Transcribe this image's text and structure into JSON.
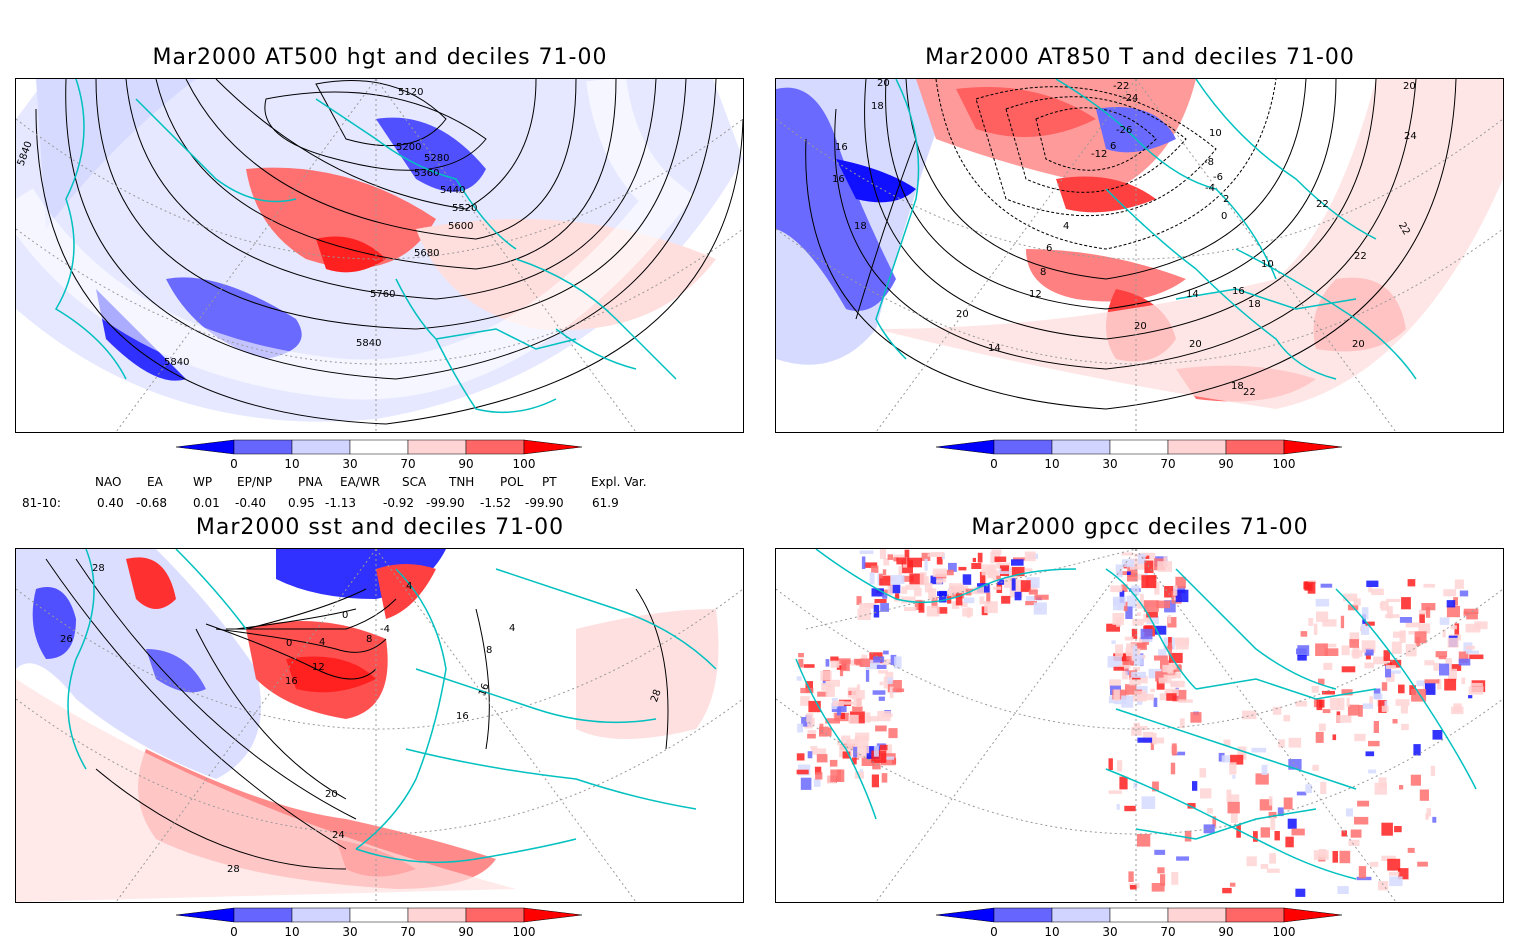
{
  "panels": [
    {
      "title": "Mar2000  AT500 hgt and deciles 71-00",
      "contour_labels": [
        "5120",
        "5200",
        "5280",
        "5360",
        "5440",
        "5520",
        "5600",
        "5680",
        "5760",
        "5840",
        "5840",
        "5840"
      ]
    },
    {
      "title": "Mar2000  AT850 T and deciles 71-00",
      "contour_labels": [
        "20",
        "18",
        "16",
        "16",
        "18",
        "-22",
        "-24",
        "-26",
        "-12",
        "6",
        "10",
        "-8",
        "-6",
        "-4",
        "2",
        "0",
        "4",
        "6",
        "8",
        "10",
        "12",
        "14",
        "16",
        "18",
        "20",
        "22",
        "24",
        "20",
        "22",
        "20",
        "22",
        "20",
        "18",
        "22",
        "20",
        "14",
        "16"
      ]
    },
    {
      "title": "Mar2000  sst and deciles 71-00",
      "contour_labels": [
        "28",
        "26",
        "0",
        "4",
        "8",
        "12",
        "16",
        "0",
        "-4",
        "4",
        "8",
        "16",
        "20",
        "24",
        "28",
        "16",
        "28",
        "4"
      ]
    },
    {
      "title": "Mar2000  gpcc deciles 71-00",
      "contour_labels": []
    }
  ],
  "colorbar": {
    "ticks": [
      "0",
      "10",
      "30",
      "70",
      "90",
      "100"
    ],
    "colors": [
      "#0000ff",
      "#6666ff",
      "#d0d4ff",
      "#ffffff",
      "#ffd4d4",
      "#ff6666",
      "#ff0000"
    ]
  },
  "indices": {
    "headers": [
      "NAO",
      "EA",
      "WP",
      "EP/NP",
      "PNA",
      "EA/WR",
      "SCA",
      "TNH",
      "POL",
      "PT",
      "Expl. Var."
    ],
    "row_label": "81-10:",
    "values": [
      "0.40",
      "-0.68",
      "0.01",
      "-0.40",
      "0.95",
      "-1.13",
      "-0.92",
      "-99.90",
      "-1.52",
      "-99.90",
      "61.9"
    ]
  },
  "map_colors": {
    "coast": "#00c0c0",
    "contour": "#000000",
    "grid": "#999999"
  }
}
